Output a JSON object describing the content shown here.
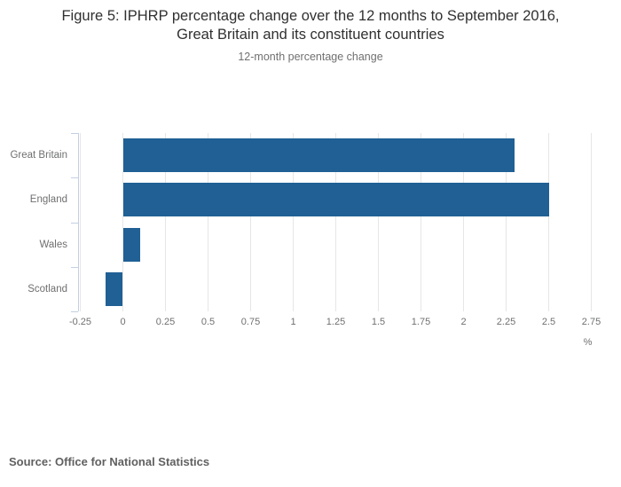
{
  "page": {
    "title_lines": [
      "Figure 5: IPHRP percentage change over the 12 months to September 2016,",
      "Great Britain and its constituent countries"
    ],
    "subtitle": "12-month percentage change",
    "source": "Source: Office for National Statistics"
  },
  "chart_data": {
    "type": "bar",
    "orientation": "horizontal",
    "title": "Figure 5: IPHRP percentage change over the 12 months to September 2016, Great Britain and its constituent countries",
    "subtitle": "12-month percentage change",
    "categories": [
      "Great Britain",
      "England",
      "Wales",
      "Scotland"
    ],
    "values": [
      2.3,
      2.5,
      0.1,
      -0.1
    ],
    "xlabel": "%",
    "xlim": [
      -0.25,
      2.75
    ],
    "xticks": [
      "-0.25",
      "0",
      "0.25",
      "0.5",
      "0.75",
      "1",
      "1.25",
      "1.5",
      "1.75",
      "2",
      "2.25",
      "2.5",
      "2.75"
    ],
    "grid": true,
    "legend": "none",
    "colors": {
      "bar": "#206095",
      "grid": "#e6e6e6",
      "y_axis": "#c3d0e2",
      "tick_label": "#6f7071",
      "category_label": "#6e6f70"
    }
  }
}
